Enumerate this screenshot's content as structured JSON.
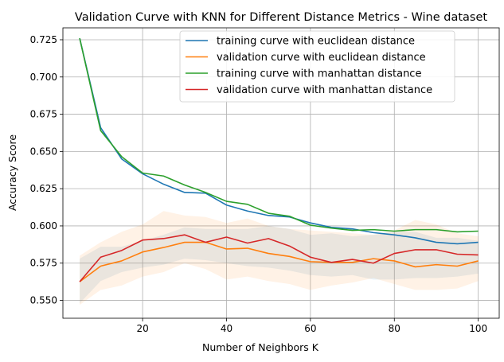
{
  "chart_data": {
    "type": "line",
    "title": "Validation Curve with KNN for Different Distance Metrics - Wine dataset",
    "xlabel": "Number of Neighbors K",
    "ylabel": "Accuracy Score",
    "xlim": [
      1,
      105
    ],
    "ylim": [
      0.538,
      0.733
    ],
    "xticks": [
      20,
      40,
      60,
      80,
      100
    ],
    "yticks": [
      0.55,
      0.575,
      0.6,
      0.625,
      0.65,
      0.675,
      0.7,
      0.725
    ],
    "xtick_labels": [
      "20",
      "40",
      "60",
      "80",
      "100"
    ],
    "ytick_labels": [
      "0.550",
      "0.575",
      "0.600",
      "0.625",
      "0.650",
      "0.675",
      "0.700",
      "0.725"
    ],
    "grid": true,
    "legend_position": "top-right",
    "x": [
      5,
      10,
      15,
      20,
      25,
      30,
      35,
      40,
      45,
      50,
      55,
      60,
      65,
      70,
      75,
      80,
      85,
      90,
      95,
      100
    ],
    "series": [
      {
        "name": "training curve with euclidean distance",
        "color": "#1f77b4",
        "values": [
          0.726,
          0.666,
          0.645,
          0.635,
          0.628,
          0.6225,
          0.622,
          0.614,
          0.61,
          0.607,
          0.606,
          0.602,
          0.599,
          0.598,
          0.5955,
          0.594,
          0.592,
          0.589,
          0.588,
          0.589
        ],
        "band_lower": [
          0.548,
          0.563,
          0.569,
          0.572,
          0.574,
          0.578,
          0.577,
          0.575,
          0.573,
          0.572,
          0.57,
          0.567,
          0.566,
          0.567,
          0.564,
          0.564,
          0.565,
          0.565,
          0.566,
          0.568
        ],
        "band_upper": [
          0.578,
          0.586,
          0.586,
          0.59,
          0.594,
          0.599,
          0.598,
          0.598,
          0.598,
          0.6,
          0.598,
          0.594,
          0.595,
          0.593,
          0.594,
          0.596,
          0.596,
          0.592,
          0.592,
          0.59
        ]
      },
      {
        "name": "validation curve with euclidean distance",
        "color": "#ff7f0e",
        "values": [
          0.5625,
          0.573,
          0.5765,
          0.5825,
          0.5855,
          0.589,
          0.589,
          0.5845,
          0.585,
          0.5815,
          0.5795,
          0.576,
          0.5755,
          0.5755,
          0.578,
          0.5765,
          0.5725,
          0.574,
          0.573,
          0.5765
        ],
        "band_lower": [
          0.547,
          0.557,
          0.56,
          0.566,
          0.569,
          0.575,
          0.571,
          0.564,
          0.566,
          0.563,
          0.561,
          0.557,
          0.56,
          0.562,
          0.565,
          0.561,
          0.557,
          0.557,
          0.558,
          0.563
        ],
        "band_upper": [
          0.58,
          0.589,
          0.596,
          0.601,
          0.61,
          0.607,
          0.606,
          0.602,
          0.605,
          0.6,
          0.598,
          0.597,
          0.596,
          0.595,
          0.594,
          0.597,
          0.604,
          0.601,
          0.595,
          0.593
        ]
      },
      {
        "name": "training curve with manhattan distance",
        "color": "#2ca02c",
        "values": [
          0.726,
          0.664,
          0.6465,
          0.6355,
          0.6335,
          0.6275,
          0.6225,
          0.6165,
          0.6145,
          0.6085,
          0.6065,
          0.6005,
          0.5985,
          0.597,
          0.5975,
          0.5965,
          0.5975,
          0.5975,
          0.596,
          0.5965
        ],
        "band_lower": [],
        "band_upper": []
      },
      {
        "name": "validation curve with manhattan distance",
        "color": "#d62728",
        "values": [
          0.5625,
          0.579,
          0.5835,
          0.5905,
          0.5915,
          0.594,
          0.589,
          0.5925,
          0.5885,
          0.5915,
          0.5865,
          0.579,
          0.5755,
          0.5775,
          0.575,
          0.5815,
          0.584,
          0.584,
          0.581,
          0.5805
        ],
        "band_lower": [],
        "band_upper": []
      }
    ]
  }
}
